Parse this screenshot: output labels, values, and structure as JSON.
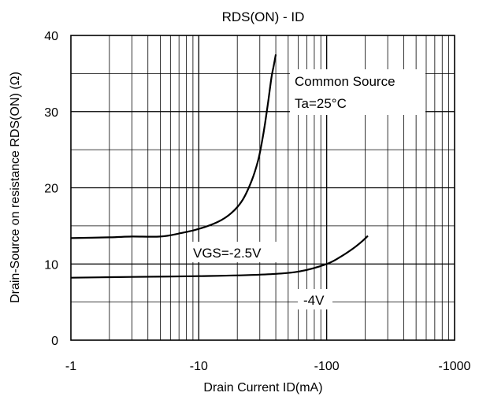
{
  "chart_data": {
    "type": "line",
    "title": "RDS(ON) - ID",
    "xlabel": "Drain Current ID(mA)",
    "ylabel": "Drain-Source on resistance RDS(ON) (Ω)",
    "x_scale": "log",
    "x_axis_reversed_sign": true,
    "xlim": [
      -1,
      -1000
    ],
    "ylim": [
      0,
      40
    ],
    "x_ticks": [
      "-1",
      "-10",
      "-100",
      "-1000"
    ],
    "y_ticks": [
      "0",
      "10",
      "20",
      "30",
      "40"
    ],
    "grid": true,
    "annotations": [
      "Common Source",
      "Ta=25°C"
    ],
    "series": [
      {
        "name": "VGS=-2.5V",
        "x": [
          -1,
          -2,
          -3,
          -5,
          -7,
          -10,
          -14,
          -18,
          -22,
          -26,
          -29,
          -31,
          -33,
          -35,
          -37,
          -38.5,
          -40
        ],
        "y": [
          13.4,
          13.5,
          13.6,
          13.6,
          14.0,
          14.6,
          15.5,
          16.7,
          18.4,
          21.0,
          23.5,
          25.8,
          28.5,
          31.5,
          34.5,
          36.0,
          37.5
        ]
      },
      {
        "name": "-4V",
        "x": [
          -1,
          -3,
          -10,
          -30,
          -60,
          -100,
          -130,
          -160,
          -190,
          -210
        ],
        "y": [
          8.2,
          8.3,
          8.4,
          8.6,
          9.0,
          10.0,
          11.0,
          12.0,
          13.0,
          13.7
        ]
      }
    ]
  }
}
